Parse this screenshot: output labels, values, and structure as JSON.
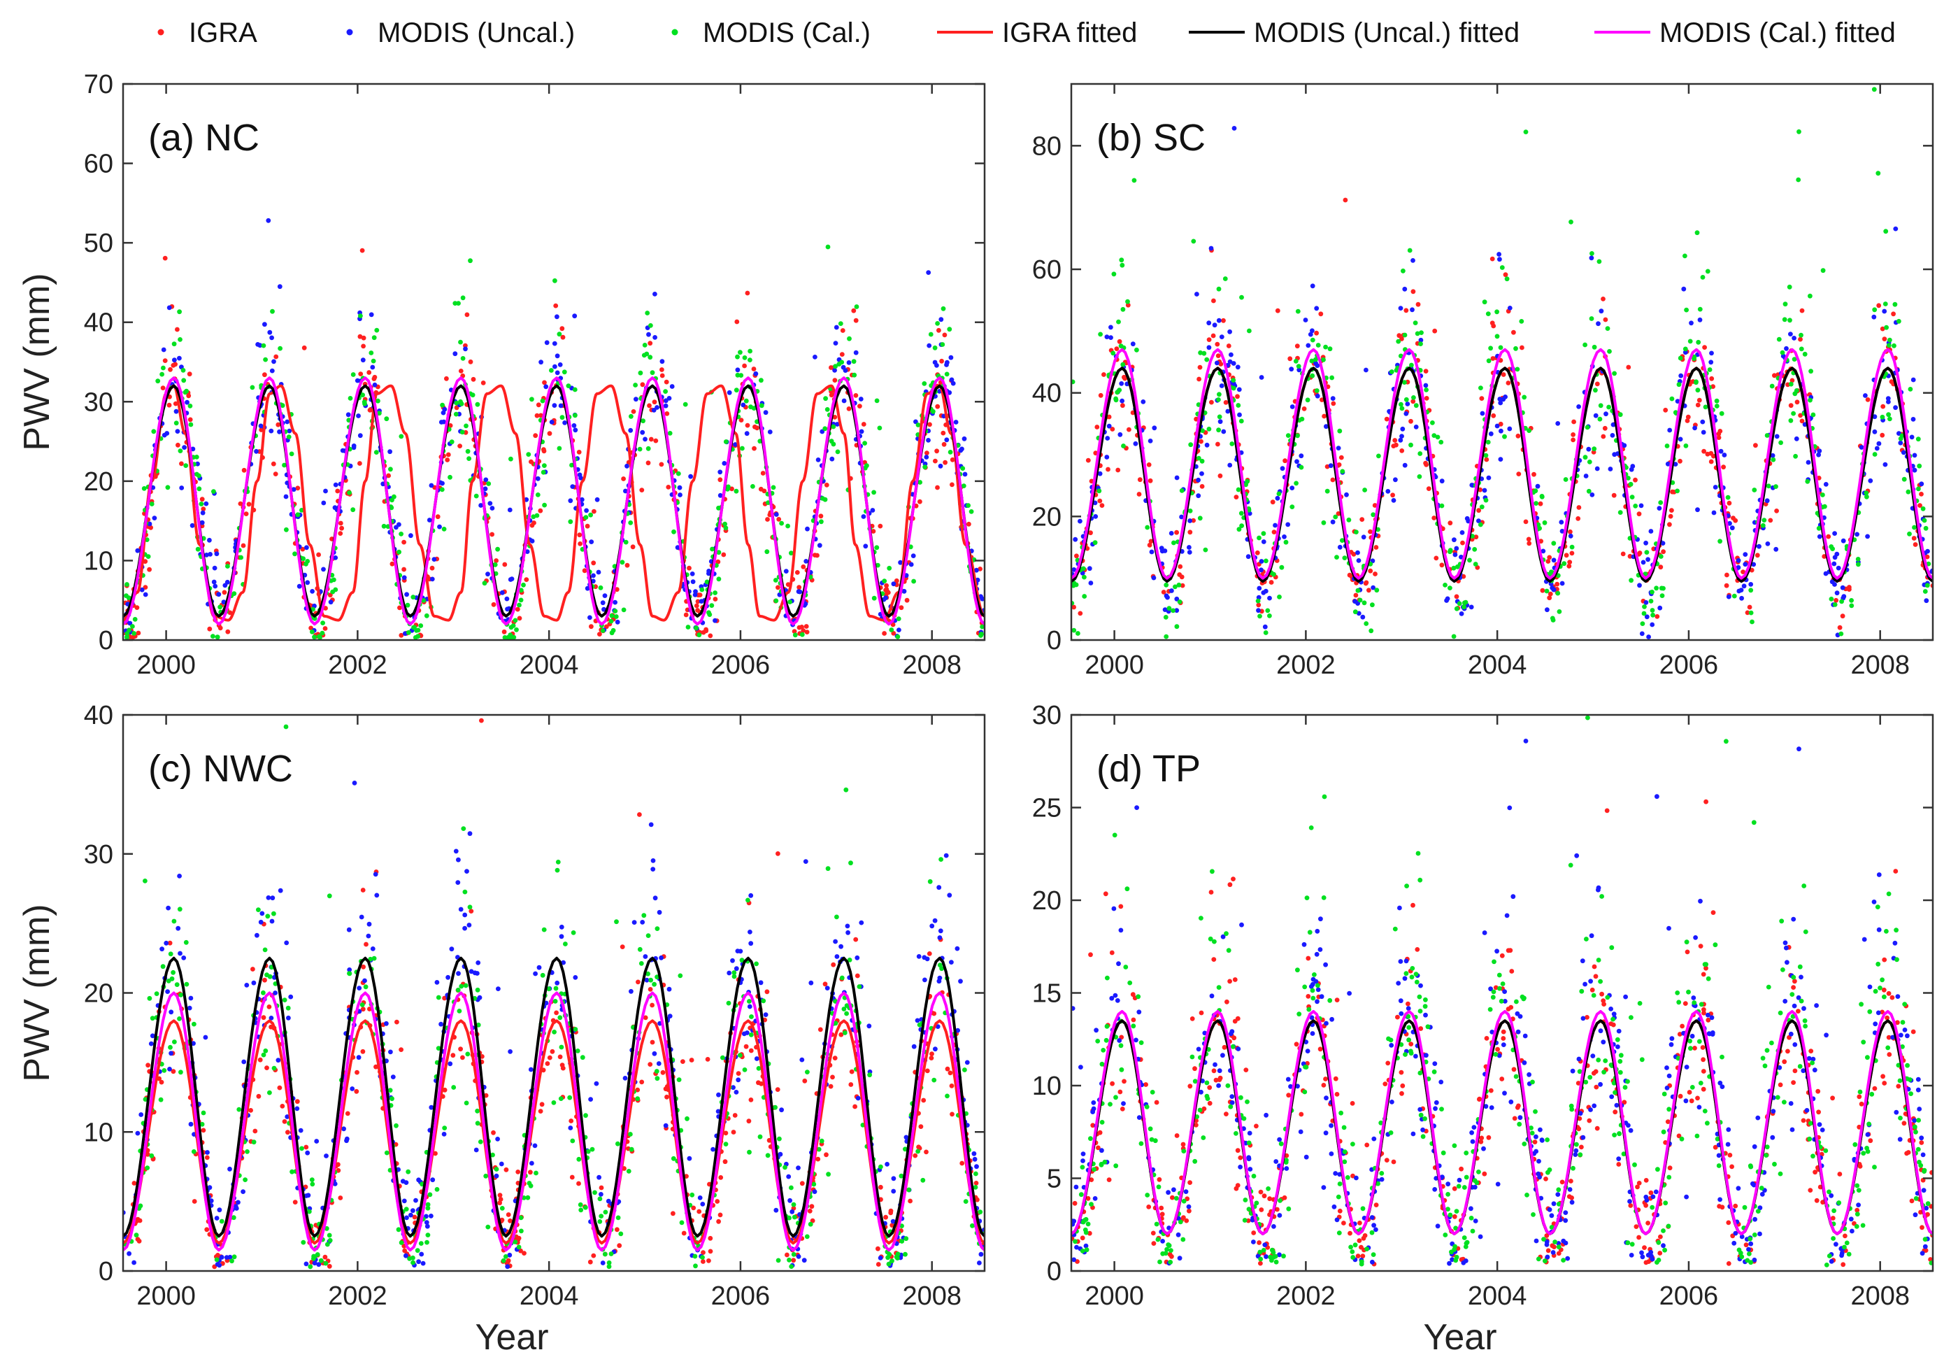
{
  "figure": {
    "legend": {
      "position": "top",
      "entries": [
        {
          "label": "IGRA",
          "kind": "marker",
          "color": "#ff2020"
        },
        {
          "label": "MODIS (Uncal.)",
          "kind": "marker",
          "color": "#1a1aff"
        },
        {
          "label": "MODIS (Cal.)",
          "kind": "marker",
          "color": "#00e020"
        },
        {
          "label": "IGRA fitted",
          "kind": "line",
          "color": "#ff2020"
        },
        {
          "label": "MODIS (Uncal.) fitted",
          "kind": "line",
          "color": "#000000"
        },
        {
          "label": "MODIS (Cal.) fitted",
          "kind": "line",
          "color": "#ff00ff"
        }
      ]
    }
  },
  "chart_data": [
    {
      "id": "a",
      "type": "scatter",
      "title": "(a) NC",
      "xlabel": "",
      "ylabel": "PWV (mm)",
      "xlim": [
        1999.55,
        2008.55
      ],
      "ylim": [
        0,
        70
      ],
      "xticks": [
        2000,
        2002,
        2004,
        2006,
        2008
      ],
      "yticks": [
        0,
        10,
        20,
        30,
        40,
        50,
        60,
        70
      ],
      "grid": false,
      "series": [
        {
          "name": "IGRA",
          "kind": "scatter",
          "color": "#ff2020",
          "amplitude": 15,
          "mean": 17,
          "spread": 4.5
        },
        {
          "name": "MODIS (Uncal.)",
          "kind": "scatter",
          "color": "#1a1aff",
          "amplitude": 15,
          "mean": 18,
          "spread": 4.5
        },
        {
          "name": "MODIS (Cal.)",
          "kind": "scatter",
          "color": "#00e020",
          "amplitude": 16,
          "mean": 17,
          "spread": 5
        },
        {
          "name": "IGRA fitted",
          "kind": "line",
          "color": "#ff2020",
          "x": [
            1999.55,
            1999.7,
            1999.85,
            2000.0,
            2000.08,
            2000.2,
            2000.35,
            2000.5,
            2000.65,
            2000.8,
            2000.95,
            2001.08,
            2001.2,
            2001.35,
            2001.5,
            2001.65,
            2001.8,
            2001.95,
            2002.08,
            2002.2,
            2002.35,
            2002.5,
            2002.65,
            2002.8,
            2002.95,
            2003.08,
            2003.2,
            2003.35,
            2003.5,
            2003.65,
            2003.8,
            2003.95,
            2004.08,
            2004.2,
            2004.35,
            2004.5,
            2004.65,
            2004.8,
            2004.95,
            2005.08,
            2005.2,
            2005.35,
            2005.5,
            2005.65,
            2005.8,
            2005.95,
            2006.08,
            2006.2,
            2006.35,
            2006.5,
            2006.65,
            2006.8,
            2006.95,
            2007.08,
            2007.2,
            2007.35,
            2007.5,
            2007.65,
            2007.8,
            2007.95,
            2008.08,
            2008.2,
            2008.35,
            2008.55
          ],
          "y": [
            2.5,
            6,
            20,
            31,
            32,
            26,
            12,
            3,
            2.5,
            6,
            20,
            31,
            32,
            26,
            12,
            3,
            2.5,
            6,
            20,
            31,
            32,
            26,
            12,
            3,
            2.5,
            6,
            20,
            31,
            32,
            26,
            12,
            3,
            2.5,
            6,
            20,
            31,
            32,
            26,
            12,
            3,
            2.5,
            6,
            20,
            31,
            32,
            26,
            12,
            3,
            2.5,
            6,
            20,
            31,
            32,
            26,
            12,
            3,
            2.5,
            6,
            20,
            31,
            32,
            26,
            12,
            3
          ]
        },
        {
          "name": "MODIS (Uncal.) fitted",
          "kind": "line",
          "color": "#000000",
          "x": [
            1999.55,
            2000.08,
            2000.55,
            2001.08,
            2001.55,
            2002.08,
            2002.55,
            2003.08,
            2003.55,
            2004.08,
            2004.55,
            2005.08,
            2005.55,
            2006.08,
            2006.55,
            2007.08,
            2007.55,
            2008.08,
            2008.55
          ],
          "y": [
            3,
            32,
            3,
            32,
            3,
            32,
            3,
            32,
            3,
            32,
            3,
            32,
            3,
            32,
            3,
            32,
            3,
            32,
            3
          ]
        },
        {
          "name": "MODIS (Cal.) fitted",
          "kind": "line",
          "color": "#ff00ff",
          "x": [
            1999.55,
            2000.08,
            2000.55,
            2001.08,
            2001.55,
            2002.08,
            2002.55,
            2003.08,
            2003.55,
            2004.08,
            2004.55,
            2005.08,
            2005.55,
            2006.08,
            2006.55,
            2007.08,
            2007.55,
            2008.08,
            2008.55
          ],
          "y": [
            2,
            33,
            2,
            33,
            2,
            33,
            2,
            33,
            2,
            33,
            2,
            33,
            2,
            33,
            2,
            33,
            2,
            33,
            2
          ]
        }
      ]
    },
    {
      "id": "b",
      "type": "scatter",
      "title": "(b) SC",
      "xlabel": "",
      "ylabel": "",
      "xlim": [
        1999.55,
        2008.55
      ],
      "ylim": [
        0,
        90
      ],
      "xticks": [
        2000,
        2002,
        2004,
        2006,
        2008
      ],
      "yticks": [
        0,
        20,
        40,
        60,
        80
      ],
      "grid": false,
      "series": [
        {
          "name": "IGRA",
          "kind": "scatter",
          "color": "#ff2020",
          "amplitude": 17,
          "mean": 27,
          "spread": 6
        },
        {
          "name": "MODIS (Uncal.)",
          "kind": "scatter",
          "color": "#1a1aff",
          "amplitude": 17,
          "mean": 27,
          "spread": 7
        },
        {
          "name": "MODIS (Cal.)",
          "kind": "scatter",
          "color": "#00e020",
          "amplitude": 19,
          "mean": 27,
          "spread": 8
        },
        {
          "name": "IGRA fitted",
          "kind": "line",
          "color": "#ff2020",
          "x": [
            1999.55,
            2000.08,
            2000.55,
            2001.08,
            2001.55,
            2002.08,
            2002.55,
            2003.08,
            2003.55,
            2004.08,
            2004.55,
            2005.08,
            2005.55,
            2006.08,
            2006.55,
            2007.08,
            2007.55,
            2008.08,
            2008.55
          ],
          "y": [
            10,
            44,
            10,
            44,
            10,
            44,
            10,
            44,
            10,
            44,
            10,
            44,
            10,
            44,
            10,
            44,
            10,
            44,
            10
          ]
        },
        {
          "name": "MODIS (Uncal.) fitted",
          "kind": "line",
          "color": "#000000",
          "x": [
            1999.55,
            2000.08,
            2000.55,
            2001.08,
            2001.55,
            2002.08,
            2002.55,
            2003.08,
            2003.55,
            2004.08,
            2004.55,
            2005.08,
            2005.55,
            2006.08,
            2006.55,
            2007.08,
            2007.55,
            2008.08,
            2008.55
          ],
          "y": [
            9.5,
            44,
            9.5,
            44,
            9.5,
            44,
            9.5,
            44,
            9.5,
            44,
            9.5,
            44,
            9.5,
            44,
            9.5,
            44,
            9.5,
            44,
            9.5
          ]
        },
        {
          "name": "MODIS (Cal.) fitted",
          "kind": "line",
          "color": "#ff00ff",
          "x": [
            1999.55,
            2000.08,
            2000.55,
            2001.08,
            2001.55,
            2002.08,
            2002.55,
            2003.08,
            2003.55,
            2004.08,
            2004.55,
            2005.08,
            2005.55,
            2006.08,
            2006.55,
            2007.08,
            2007.55,
            2008.08,
            2008.55
          ],
          "y": [
            10,
            47,
            10,
            47,
            10,
            47,
            10,
            47,
            10,
            47,
            10,
            47,
            10,
            47,
            10,
            47,
            10,
            47,
            10
          ]
        }
      ]
    },
    {
      "id": "c",
      "type": "scatter",
      "title": "(c) NWC",
      "xlabel": "Year",
      "ylabel": "PWV (mm)",
      "xlim": [
        1999.55,
        2008.55
      ],
      "ylim": [
        0,
        40
      ],
      "xticks": [
        2000,
        2002,
        2004,
        2006,
        2008
      ],
      "yticks": [
        0,
        10,
        20,
        30,
        40
      ],
      "grid": false,
      "series": [
        {
          "name": "IGRA",
          "kind": "scatter",
          "color": "#ff2020",
          "amplitude": 8,
          "mean": 10,
          "spread": 3
        },
        {
          "name": "MODIS (Uncal.)",
          "kind": "scatter",
          "color": "#1a1aff",
          "amplitude": 10,
          "mean": 12.5,
          "spread": 3.5
        },
        {
          "name": "MODIS (Cal.)",
          "kind": "scatter",
          "color": "#00e020",
          "amplitude": 9,
          "mean": 11,
          "spread": 3.5
        },
        {
          "name": "IGRA fitted",
          "kind": "line",
          "color": "#ff2020",
          "x": [
            1999.55,
            2000.08,
            2000.55,
            2001.08,
            2001.55,
            2002.08,
            2002.55,
            2003.08,
            2003.55,
            2004.08,
            2004.55,
            2005.08,
            2005.55,
            2006.08,
            2006.55,
            2007.08,
            2007.55,
            2008.08,
            2008.55
          ],
          "y": [
            2,
            18,
            2,
            18,
            2,
            18,
            2,
            18,
            2,
            18,
            2,
            18,
            2,
            18,
            2,
            18,
            2,
            18,
            2
          ]
        },
        {
          "name": "MODIS (Uncal.) fitted",
          "kind": "line",
          "color": "#000000",
          "x": [
            1999.55,
            2000.08,
            2000.55,
            2001.08,
            2001.55,
            2002.08,
            2002.55,
            2003.08,
            2003.55,
            2004.08,
            2004.55,
            2005.08,
            2005.55,
            2006.08,
            2006.55,
            2007.08,
            2007.55,
            2008.08,
            2008.55
          ],
          "y": [
            2.5,
            22.5,
            2.5,
            22.5,
            2.5,
            22.5,
            2.5,
            22.5,
            2.5,
            22.5,
            2.5,
            22.5,
            2.5,
            22.5,
            2.5,
            22.5,
            2.5,
            22.5,
            2.5
          ]
        },
        {
          "name": "MODIS (Cal.) fitted",
          "kind": "line",
          "color": "#ff00ff",
          "x": [
            1999.55,
            2000.08,
            2000.55,
            2001.08,
            2001.55,
            2002.08,
            2002.55,
            2003.08,
            2003.55,
            2004.08,
            2004.55,
            2005.08,
            2005.55,
            2006.08,
            2006.55,
            2007.08,
            2007.55,
            2008.08,
            2008.55
          ],
          "y": [
            1.5,
            20,
            1.5,
            20,
            1.5,
            20,
            1.5,
            20,
            1.5,
            20,
            1.5,
            20,
            1.5,
            20,
            1.5,
            20,
            1.5,
            20,
            1.5
          ]
        }
      ]
    },
    {
      "id": "d",
      "type": "scatter",
      "title": "(d) TP",
      "xlabel": "Year",
      "ylabel": "",
      "xlim": [
        1999.55,
        2008.55
      ],
      "ylim": [
        0,
        30
      ],
      "xticks": [
        2000,
        2002,
        2004,
        2006,
        2008
      ],
      "yticks": [
        0,
        5,
        10,
        15,
        20,
        25,
        30
      ],
      "grid": false,
      "series": [
        {
          "name": "IGRA",
          "kind": "scatter",
          "color": "#ff2020",
          "amplitude": 6,
          "mean": 7.5,
          "spread": 2.5
        },
        {
          "name": "MODIS (Uncal.)",
          "kind": "scatter",
          "color": "#1a1aff",
          "amplitude": 6.5,
          "mean": 8,
          "spread": 3
        },
        {
          "name": "MODIS (Cal.)",
          "kind": "scatter",
          "color": "#00e020",
          "amplitude": 6.5,
          "mean": 8,
          "spread": 3
        },
        {
          "name": "IGRA fitted",
          "kind": "line",
          "color": "#ff2020",
          "x": [
            1999.55,
            2000.08,
            2000.55,
            2001.08,
            2001.55,
            2002.08,
            2002.55,
            2003.08,
            2003.55,
            2004.08,
            2004.55,
            2005.08,
            2005.55,
            2006.08,
            2006.55,
            2007.08,
            2007.55,
            2008.08,
            2008.55
          ],
          "y": [
            2,
            13.5,
            2,
            13.5,
            2,
            13.5,
            2,
            13.5,
            2,
            13.5,
            2,
            13.5,
            2,
            13.5,
            2,
            13.5,
            2,
            13.5,
            2
          ]
        },
        {
          "name": "MODIS (Uncal.) fitted",
          "kind": "line",
          "color": "#000000",
          "x": [
            1999.55,
            2000.08,
            2000.55,
            2001.08,
            2001.55,
            2002.08,
            2002.55,
            2003.08,
            2003.55,
            2004.08,
            2004.55,
            2005.08,
            2005.55,
            2006.08,
            2006.55,
            2007.08,
            2007.55,
            2008.08,
            2008.55
          ],
          "y": [
            2,
            13.5,
            2,
            13.5,
            2,
            13.5,
            2,
            13.5,
            2,
            13.5,
            2,
            13.5,
            2,
            13.5,
            2,
            13.5,
            2,
            13.5,
            2
          ]
        },
        {
          "name": "MODIS (Cal.) fitted",
          "kind": "line",
          "color": "#ff00ff",
          "x": [
            1999.55,
            2000.08,
            2000.55,
            2001.08,
            2001.55,
            2002.08,
            2002.55,
            2003.08,
            2003.55,
            2004.08,
            2004.55,
            2005.08,
            2005.55,
            2006.08,
            2006.55,
            2007.08,
            2007.55,
            2008.08,
            2008.55
          ],
          "y": [
            2,
            14,
            2,
            14,
            2,
            14,
            2,
            14,
            2,
            14,
            2,
            14,
            2,
            14,
            2,
            14,
            2,
            14,
            2
          ]
        }
      ]
    }
  ]
}
